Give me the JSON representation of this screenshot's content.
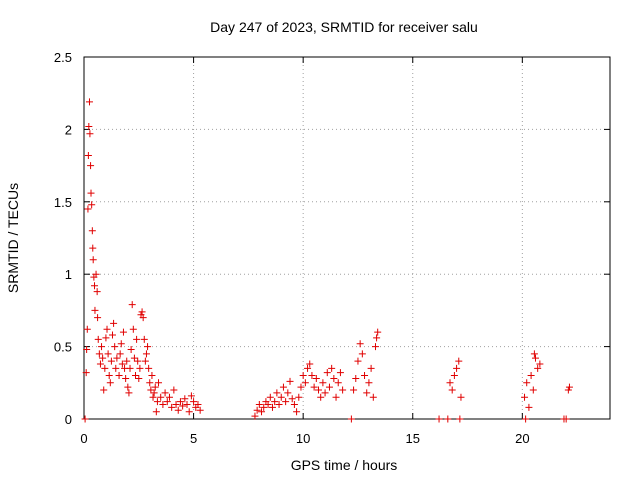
{
  "chart_data": {
    "type": "scatter",
    "title": "Day 247 of 2023, SRMTID for receiver salu",
    "xlabel": "GPS time / hours",
    "ylabel": "SRMTID / TECUs",
    "xlim": [
      0,
      24
    ],
    "ylim": [
      0,
      2.5
    ],
    "xticks": [
      0,
      5,
      10,
      15,
      20
    ],
    "yticks": [
      0,
      0.5,
      1,
      1.5,
      2,
      2.5
    ],
    "ytick_labels": [
      "0",
      "0.5",
      "1",
      "1.5",
      "2",
      "2.5"
    ],
    "grid": true,
    "marker": "+",
    "color": "#e00000",
    "series": [
      {
        "name": "SRMTID",
        "points": [
          [
            0.05,
            0.0
          ],
          [
            0.1,
            0.32
          ],
          [
            0.12,
            0.48
          ],
          [
            0.15,
            0.62
          ],
          [
            0.18,
            1.45
          ],
          [
            0.2,
            1.82
          ],
          [
            0.22,
            2.02
          ],
          [
            0.25,
            2.19
          ],
          [
            0.27,
            1.97
          ],
          [
            0.3,
            1.75
          ],
          [
            0.32,
            1.56
          ],
          [
            0.35,
            1.48
          ],
          [
            0.38,
            1.3
          ],
          [
            0.4,
            1.18
          ],
          [
            0.42,
            1.1
          ],
          [
            0.45,
            0.98
          ],
          [
            0.48,
            0.92
          ],
          [
            0.5,
            0.75
          ],
          [
            0.55,
            1.0
          ],
          [
            0.6,
            0.88
          ],
          [
            0.62,
            0.7
          ],
          [
            0.65,
            0.55
          ],
          [
            0.7,
            0.45
          ],
          [
            0.75,
            0.38
          ],
          [
            0.8,
            0.5
          ],
          [
            0.85,
            0.42
          ],
          [
            0.9,
            0.2
          ],
          [
            0.95,
            0.35
          ],
          [
            1.0,
            0.56
          ],
          [
            1.05,
            0.62
          ],
          [
            1.1,
            0.45
          ],
          [
            1.15,
            0.3
          ],
          [
            1.2,
            0.25
          ],
          [
            1.25,
            0.4
          ],
          [
            1.3,
            0.58
          ],
          [
            1.35,
            0.66
          ],
          [
            1.4,
            0.5
          ],
          [
            1.45,
            0.35
          ],
          [
            1.5,
            0.42
          ],
          [
            1.6,
            0.3
          ],
          [
            1.65,
            0.45
          ],
          [
            1.7,
            0.52
          ],
          [
            1.75,
            0.38
          ],
          [
            1.8,
            0.6
          ],
          [
            1.85,
            0.35
          ],
          [
            1.9,
            0.28
          ],
          [
            1.95,
            0.4
          ],
          [
            2.0,
            0.22
          ],
          [
            2.05,
            0.18
          ],
          [
            2.1,
            0.35
          ],
          [
            2.15,
            0.48
          ],
          [
            2.2,
            0.79
          ],
          [
            2.25,
            0.62
          ],
          [
            2.3,
            0.42
          ],
          [
            2.35,
            0.3
          ],
          [
            2.4,
            0.55
          ],
          [
            2.45,
            0.4
          ],
          [
            2.5,
            0.28
          ],
          [
            2.55,
            0.35
          ],
          [
            2.6,
            0.72
          ],
          [
            2.65,
            0.74
          ],
          [
            2.7,
            0.7
          ],
          [
            2.75,
            0.55
          ],
          [
            2.8,
            0.4
          ],
          [
            2.85,
            0.45
          ],
          [
            2.9,
            0.5
          ],
          [
            2.95,
            0.35
          ],
          [
            3.0,
            0.25
          ],
          [
            3.05,
            0.2
          ],
          [
            3.1,
            0.3
          ],
          [
            3.15,
            0.15
          ],
          [
            3.2,
            0.18
          ],
          [
            3.25,
            0.22
          ],
          [
            3.3,
            0.05
          ],
          [
            3.35,
            0.12
          ],
          [
            3.4,
            0.25
          ],
          [
            3.5,
            0.15
          ],
          [
            3.6,
            0.1
          ],
          [
            3.7,
            0.18
          ],
          [
            3.8,
            0.12
          ],
          [
            3.9,
            0.15
          ],
          [
            4.0,
            0.08
          ],
          [
            4.1,
            0.2
          ],
          [
            4.2,
            0.1
          ],
          [
            4.3,
            0.06
          ],
          [
            4.4,
            0.12
          ],
          [
            4.5,
            0.09
          ],
          [
            4.6,
            0.14
          ],
          [
            4.7,
            0.1
          ],
          [
            4.8,
            0.05
          ],
          [
            4.9,
            0.16
          ],
          [
            5.0,
            0.12
          ],
          [
            5.1,
            0.08
          ],
          [
            5.2,
            0.1
          ],
          [
            5.3,
            0.06
          ],
          [
            7.8,
            0.02
          ],
          [
            7.9,
            0.06
          ],
          [
            8.0,
            0.1
          ],
          [
            8.1,
            0.05
          ],
          [
            8.2,
            0.08
          ],
          [
            8.3,
            0.12
          ],
          [
            8.4,
            0.1
          ],
          [
            8.5,
            0.15
          ],
          [
            8.6,
            0.08
          ],
          [
            8.7,
            0.12
          ],
          [
            8.8,
            0.18
          ],
          [
            8.9,
            0.1
          ],
          [
            9.0,
            0.15
          ],
          [
            9.1,
            0.22
          ],
          [
            9.2,
            0.12
          ],
          [
            9.3,
            0.18
          ],
          [
            9.4,
            0.26
          ],
          [
            9.5,
            0.14
          ],
          [
            9.6,
            0.1
          ],
          [
            9.7,
            0.05
          ],
          [
            9.8,
            0.15
          ],
          [
            9.9,
            0.22
          ],
          [
            10.0,
            0.3
          ],
          [
            10.1,
            0.25
          ],
          [
            10.2,
            0.35
          ],
          [
            10.3,
            0.38
          ],
          [
            10.4,
            0.3
          ],
          [
            10.5,
            0.22
          ],
          [
            10.6,
            0.28
          ],
          [
            10.7,
            0.2
          ],
          [
            10.8,
            0.15
          ],
          [
            10.9,
            0.25
          ],
          [
            11.0,
            0.18
          ],
          [
            11.1,
            0.32
          ],
          [
            11.2,
            0.22
          ],
          [
            11.3,
            0.35
          ],
          [
            11.4,
            0.28
          ],
          [
            11.5,
            0.15
          ],
          [
            11.6,
            0.25
          ],
          [
            11.7,
            0.32
          ],
          [
            11.8,
            0.2
          ],
          [
            12.2,
            0.0
          ],
          [
            12.3,
            0.2
          ],
          [
            12.4,
            0.28
          ],
          [
            12.5,
            0.4
          ],
          [
            12.6,
            0.52
          ],
          [
            12.7,
            0.45
          ],
          [
            12.8,
            0.3
          ],
          [
            12.9,
            0.18
          ],
          [
            13.0,
            0.25
          ],
          [
            13.1,
            0.35
          ],
          [
            13.2,
            0.15
          ],
          [
            13.3,
            0.5
          ],
          [
            13.35,
            0.56
          ],
          [
            13.4,
            0.6
          ],
          [
            16.2,
            0.0
          ],
          [
            16.6,
            0.0
          ],
          [
            16.7,
            0.25
          ],
          [
            16.8,
            0.2
          ],
          [
            16.9,
            0.3
          ],
          [
            17.0,
            0.35
          ],
          [
            17.1,
            0.4
          ],
          [
            17.15,
            0.0
          ],
          [
            17.2,
            0.15
          ],
          [
            20.1,
            0.15
          ],
          [
            20.15,
            0.0
          ],
          [
            20.2,
            0.25
          ],
          [
            20.3,
            0.08
          ],
          [
            20.4,
            0.3
          ],
          [
            20.5,
            0.2
          ],
          [
            20.55,
            0.45
          ],
          [
            20.6,
            0.42
          ],
          [
            20.7,
            0.35
          ],
          [
            20.8,
            0.38
          ],
          [
            21.9,
            0.0
          ],
          [
            22.0,
            0.0
          ],
          [
            22.1,
            0.2
          ],
          [
            22.15,
            0.22
          ]
        ]
      }
    ]
  }
}
